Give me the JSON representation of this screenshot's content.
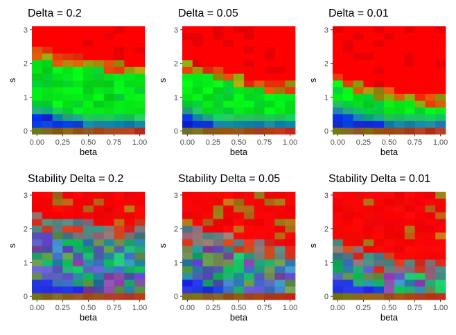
{
  "colors": {
    "panel_background": "#ebebeb",
    "grid_line": "#ffffff",
    "low_s_tint": "#0000ff",
    "mid_tint": "#00ff00",
    "high_s_tint": "#ff0000"
  },
  "chart_data": [
    {
      "type": "heatmap",
      "title": "Delta = 0.2",
      "xlabel": "beta",
      "ylabel": "s",
      "xlim": [
        -0.05,
        1.05
      ],
      "ylim": [
        -0.1,
        3.1
      ],
      "x_ticks": [
        "0.00",
        "0.25",
        "0.50",
        "0.75",
        "1.00"
      ],
      "y_ticks": [
        "0",
        "1",
        "2",
        "3"
      ],
      "x_values": [
        0,
        0.1,
        0.2,
        0.3,
        0.4,
        0.5,
        0.6,
        0.7,
        0.8,
        0.9,
        1.0
      ],
      "y_values": [
        0,
        0.2,
        0.4,
        0.6,
        0.8,
        1.0,
        1.2,
        1.4,
        1.6,
        1.8,
        2.0,
        2.2,
        2.4,
        2.6,
        2.8,
        3.0
      ],
      "regime_boundary_s": [
        2.2,
        2.2,
        2.0,
        2.0,
        2.0,
        1.9,
        1.9,
        1.8,
        1.8,
        1.7,
        1.7
      ],
      "blue_zone_top_s": [
        0.4,
        0.4,
        0.3,
        0.2,
        0.2,
        0.1,
        0.1,
        0.1,
        0.1,
        0.1,
        0.1
      ],
      "stability": false
    },
    {
      "type": "heatmap",
      "title": "Delta = 0.05",
      "xlabel": "beta",
      "ylabel": "s",
      "xlim": [
        -0.05,
        1.05
      ],
      "ylim": [
        -0.1,
        3.1
      ],
      "x_ticks": [
        "0.00",
        "0.25",
        "0.50",
        "0.75",
        "1.00"
      ],
      "y_ticks": [
        "0",
        "1",
        "2",
        "3"
      ],
      "x_values": [
        0,
        0.1,
        0.2,
        0.3,
        0.4,
        0.5,
        0.6,
        0.7,
        0.8,
        0.9,
        1.0
      ],
      "y_values": [
        0,
        0.2,
        0.4,
        0.6,
        0.8,
        1.0,
        1.2,
        1.4,
        1.6,
        1.8,
        2.0,
        2.2,
        2.4,
        2.6,
        2.8,
        3.0
      ],
      "regime_boundary_s": [
        1.8,
        1.7,
        1.7,
        1.6,
        1.5,
        1.4,
        1.3,
        1.3,
        1.2,
        1.2,
        1.2
      ],
      "blue_zone_top_s": [
        0.4,
        0.3,
        0.2,
        0.1,
        0.1,
        0.1,
        0.1,
        0.1,
        0.1,
        0.1,
        0.1
      ],
      "stability": false
    },
    {
      "type": "heatmap",
      "title": "Delta = 0.01",
      "xlabel": "beta",
      "ylabel": "s",
      "xlim": [
        -0.05,
        1.05
      ],
      "ylim": [
        -0.1,
        3.1
      ],
      "x_ticks": [
        "0.00",
        "0.25",
        "0.50",
        "0.75",
        "1.00"
      ],
      "y_ticks": [
        "0",
        "1",
        "2",
        "3"
      ],
      "x_values": [
        0,
        0.1,
        0.2,
        0.3,
        0.4,
        0.5,
        0.6,
        0.7,
        0.8,
        0.9,
        1.0
      ],
      "y_values": [
        0,
        0.2,
        0.4,
        0.6,
        0.8,
        1.0,
        1.2,
        1.4,
        1.6,
        1.8,
        2.0,
        2.2,
        2.4,
        2.6,
        2.8,
        3.0
      ],
      "regime_boundary_s": [
        1.5,
        1.3,
        1.2,
        1.1,
        1.0,
        1.0,
        0.9,
        0.9,
        0.8,
        0.8,
        0.8
      ],
      "blue_zone_top_s": [
        0.5,
        0.4,
        0.3,
        0.2,
        0.2,
        0.1,
        0.1,
        0.1,
        0.1,
        0.1,
        0.1
      ],
      "stability": false
    },
    {
      "type": "heatmap",
      "title": "Stability Delta = 0.2",
      "xlabel": "beta",
      "ylabel": "s",
      "xlim": [
        -0.05,
        1.05
      ],
      "ylim": [
        -0.1,
        3.1
      ],
      "x_ticks": [
        "0.00",
        "0.25",
        "0.50",
        "0.75",
        "1.00"
      ],
      "y_ticks": [
        "0",
        "1",
        "2",
        "3"
      ],
      "x_values": [
        0,
        0.1,
        0.2,
        0.3,
        0.4,
        0.5,
        0.6,
        0.7,
        0.8,
        0.9,
        1.0
      ],
      "y_values": [
        0,
        0.2,
        0.4,
        0.6,
        0.8,
        1.0,
        1.2,
        1.4,
        1.6,
        1.8,
        2.0,
        2.2,
        2.4,
        2.6,
        2.8,
        3.0
      ],
      "regime_boundary_s": [
        2.1,
        2.0,
        2.0,
        1.9,
        1.9,
        1.9,
        1.8,
        1.8,
        1.8,
        1.8,
        1.9
      ],
      "blue_zone_top_s": [
        0.4,
        0.4,
        0.3,
        0.2,
        0.2,
        0.1,
        0.1,
        0.1,
        0.1,
        0.1,
        0.1
      ],
      "stability": true
    },
    {
      "type": "heatmap",
      "title": "Stability Delta = 0.05",
      "xlabel": "beta",
      "ylabel": "s",
      "xlim": [
        -0.05,
        1.05
      ],
      "ylim": [
        -0.1,
        3.1
      ],
      "x_ticks": [
        "0.00",
        "0.25",
        "0.50",
        "0.75",
        "1.00"
      ],
      "y_ticks": [
        "0",
        "1",
        "2",
        "3"
      ],
      "x_values": [
        0,
        0.1,
        0.2,
        0.3,
        0.4,
        0.5,
        0.6,
        0.7,
        0.8,
        0.9,
        1.0
      ],
      "y_values": [
        0,
        0.2,
        0.4,
        0.6,
        0.8,
        1.0,
        1.2,
        1.4,
        1.6,
        1.8,
        2.0,
        2.2,
        2.4,
        2.6,
        2.8,
        3.0
      ],
      "regime_boundary_s": [
        1.7,
        1.7,
        1.6,
        1.6,
        1.5,
        1.4,
        1.4,
        1.3,
        1.3,
        1.2,
        1.2
      ],
      "blue_zone_top_s": [
        0.5,
        0.4,
        0.3,
        0.2,
        0.1,
        0.1,
        0.1,
        0.1,
        0.1,
        0.1,
        0.1
      ],
      "stability": true
    },
    {
      "type": "heatmap",
      "title": "Stability Delta = 0.01",
      "xlabel": "beta",
      "ylabel": "s",
      "xlim": [
        -0.05,
        1.05
      ],
      "ylim": [
        -0.1,
        3.1
      ],
      "x_ticks": [
        "0.00",
        "0.25",
        "0.50",
        "0.75",
        "1.00"
      ],
      "y_ticks": [
        "0",
        "1",
        "2",
        "3"
      ],
      "x_values": [
        0,
        0.1,
        0.2,
        0.3,
        0.4,
        0.5,
        0.6,
        0.7,
        0.8,
        0.9,
        1.0
      ],
      "y_values": [
        0,
        0.2,
        0.4,
        0.6,
        0.8,
        1.0,
        1.2,
        1.4,
        1.6,
        1.8,
        2.0,
        2.2,
        2.4,
        2.6,
        2.8,
        3.0
      ],
      "regime_boundary_s": [
        1.3,
        1.2,
        1.1,
        1.0,
        0.9,
        0.9,
        0.8,
        0.8,
        0.8,
        0.7,
        0.7
      ],
      "blue_zone_top_s": [
        0.5,
        0.4,
        0.3,
        0.2,
        0.2,
        0.1,
        0.1,
        0.1,
        0.1,
        0.1,
        0.1
      ],
      "stability": true
    }
  ]
}
